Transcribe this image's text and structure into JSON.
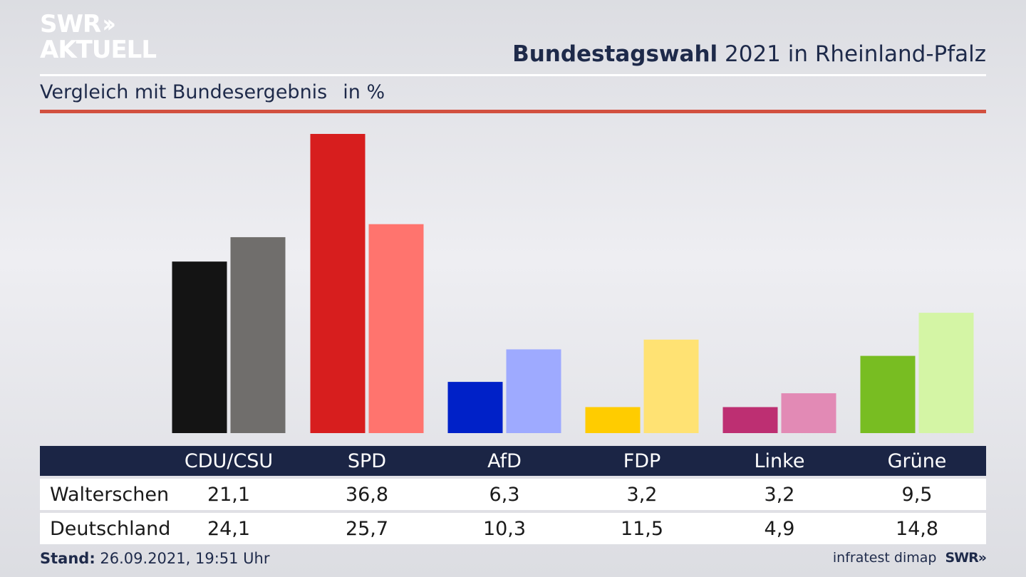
{
  "header": {
    "logo_line1": "SWR",
    "logo_line2": "AKTUELL",
    "title_bold": "Bundestagswahl",
    "title_rest": " 2021 in Rheinland-Pfalz",
    "subtitle": "Vergleich mit Bundesergebnis",
    "unit": "in %"
  },
  "footer": {
    "stand_label": "Stand:",
    "stand_value": " 26.09.2021, 19:51 Uhr",
    "source": "infratest dimap",
    "brand": "SWR"
  },
  "colors": {
    "header_bg": "#1b2545",
    "rule_red": "#d2503f",
    "CDU/CSU": [
      "#141414",
      "#706e6c"
    ],
    "SPD": [
      "#d71e1e",
      "#ff746e"
    ],
    "AfD": [
      "#0021c8",
      "#9eaaff"
    ],
    "FDP": [
      "#ffcc00",
      "#ffe273"
    ],
    "Linke": [
      "#bd2f72",
      "#e28ab5"
    ],
    "Grüne": [
      "#78bd22",
      "#d4f5a5"
    ]
  },
  "chart_data": {
    "type": "bar",
    "categories": [
      "CDU/CSU",
      "SPD",
      "AfD",
      "FDP",
      "Linke",
      "Grüne"
    ],
    "series": [
      {
        "name": "Walterschen",
        "values": [
          21.1,
          36.8,
          6.3,
          3.2,
          3.2,
          9.5
        ],
        "labels": [
          "21,1",
          "36,8",
          "6,3",
          "3,2",
          "3,2",
          "9,5"
        ]
      },
      {
        "name": "Deutschland",
        "values": [
          24.1,
          25.7,
          10.3,
          11.5,
          4.9,
          14.8
        ],
        "labels": [
          "24,1",
          "25,7",
          "10,3",
          "11,5",
          "4,9",
          "14,8"
        ]
      }
    ],
    "title": "Bundestagswahl 2021 in Rheinland-Pfalz",
    "ylabel": "in %",
    "ylim": [
      0,
      36.8
    ],
    "grid": false
  },
  "table": {
    "headers": [
      "CDU/CSU",
      "SPD",
      "AfD",
      "FDP",
      "Linke",
      "Grüne"
    ],
    "rows": [
      {
        "label": "Walterschen",
        "values": [
          "21,1",
          "36,8",
          "6,3",
          "3,2",
          "3,2",
          "9,5"
        ]
      },
      {
        "label": "Deutschland",
        "values": [
          "24,1",
          "25,7",
          "10,3",
          "11,5",
          "4,9",
          "14,8"
        ]
      }
    ]
  }
}
